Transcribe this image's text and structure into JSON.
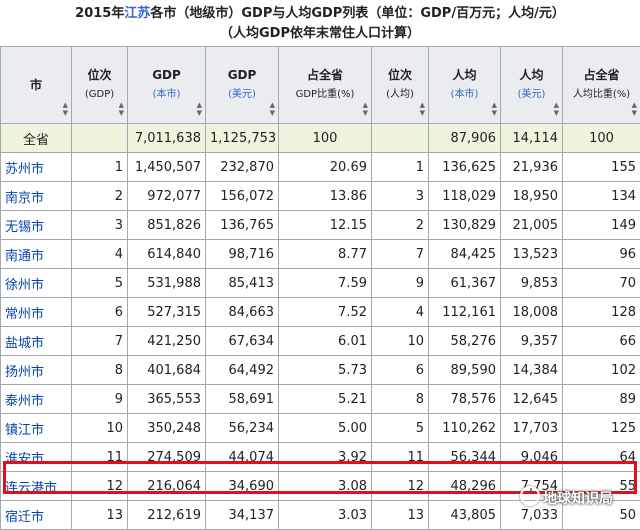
{
  "caption": {
    "line1_pre": "2015年",
    "line1_hl": "江苏",
    "line1_post": "各市（地级市）GDP与人均GDP列表（单位：GDP/百万元；人均/元）",
    "line2": "（人均GDP依年末常住人口计算）"
  },
  "headers": [
    {
      "main": "市",
      "sub": ""
    },
    {
      "main": "位次",
      "sub": "(GDP)"
    },
    {
      "main": "GDP",
      "sub": "(本市)"
    },
    {
      "main": "GDP",
      "sub": "(美元)"
    },
    {
      "main": "占全省",
      "sub": "GDP比重(%)"
    },
    {
      "main": "位次",
      "sub": "(人均)"
    },
    {
      "main": "人均",
      "sub": "(本市)"
    },
    {
      "main": "人均",
      "sub": "(美元)"
    },
    {
      "main": "占全省",
      "sub": "人均比重(%)"
    }
  ],
  "total_row": [
    "全省",
    "",
    "7,011,638",
    "1,125,753",
    "100",
    "",
    "87,906",
    "14,114",
    "100"
  ],
  "rows": [
    [
      "苏州市",
      "1",
      "1,450,507",
      "232,870",
      "20.69",
      "1",
      "136,625",
      "21,936",
      "155"
    ],
    [
      "南京市",
      "2",
      "972,077",
      "156,072",
      "13.86",
      "3",
      "118,029",
      "18,950",
      "134"
    ],
    [
      "无锡市",
      "3",
      "851,826",
      "136,765",
      "12.15",
      "2",
      "130,829",
      "21,005",
      "149"
    ],
    [
      "南通市",
      "4",
      "614,840",
      "98,716",
      "8.77",
      "7",
      "84,425",
      "13,523",
      "96"
    ],
    [
      "徐州市",
      "5",
      "531,988",
      "85,413",
      "7.59",
      "9",
      "61,367",
      "9,853",
      "70"
    ],
    [
      "常州市",
      "6",
      "527,315",
      "84,663",
      "7.52",
      "4",
      "112,161",
      "18,008",
      "128"
    ],
    [
      "盐城市",
      "7",
      "421,250",
      "67,634",
      "6.01",
      "10",
      "58,276",
      "9,357",
      "66"
    ],
    [
      "扬州市",
      "8",
      "401,684",
      "64,492",
      "5.73",
      "6",
      "89,590",
      "14,384",
      "102"
    ],
    [
      "泰州市",
      "9",
      "365,553",
      "58,691",
      "5.21",
      "8",
      "78,576",
      "12,645",
      "89"
    ],
    [
      "镇江市",
      "10",
      "350,248",
      "56,234",
      "5.00",
      "5",
      "110,262",
      "17,703",
      "125"
    ],
    [
      "淮安市",
      "11",
      "274,509",
      "44,074",
      "3.92",
      "11",
      "56,344",
      "9,046",
      "64"
    ],
    [
      "连云港市",
      "12",
      "216,064",
      "34,690",
      "3.08",
      "12",
      "48,296",
      "7,754",
      "55"
    ],
    [
      "宿迁市",
      "13",
      "212,619",
      "34,137",
      "3.03",
      "13",
      "43,805",
      "7,033",
      "50"
    ]
  ],
  "highlight_row": "连云港市",
  "watermark": "地球知识局",
  "colors": {
    "link": "#0645ad",
    "highlight": "#e0101a",
    "total_bg": "#eef4de",
    "header_bg": "#eaecf0"
  }
}
